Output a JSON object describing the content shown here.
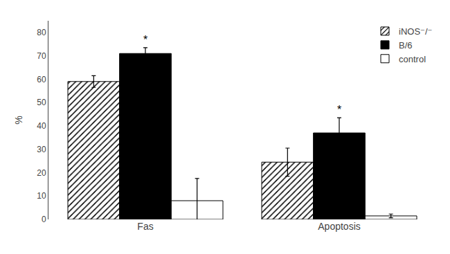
{
  "chart_data": {
    "type": "bar",
    "categories": [
      "Fas",
      "Apoptosis"
    ],
    "series": [
      {
        "name": "iNOS⁻/⁻",
        "color": "white",
        "values": [
          59.0,
          24.5
        ],
        "errors": [
          2.5,
          6.0
        ]
      },
      {
        "name": "B/6",
        "color": "black",
        "values": [
          71.0,
          37.0
        ],
        "errors": [
          2.5,
          6.5
        ]
      },
      {
        "name": "control",
        "color": "white",
        "values": [
          8.0,
          1.5
        ],
        "errors": [
          9.5,
          0.8
        ]
      }
    ],
    "annotations": [
      {
        "text": "*",
        "category": "Fas",
        "series": "B/6"
      },
      {
        "text": "*",
        "category": "Apoptosis",
        "series": "B/6"
      }
    ],
    "ylabel": "%",
    "ylim": [
      0,
      85
    ],
    "yticks": [
      0,
      10,
      20,
      30,
      40,
      50,
      60,
      70,
      80
    ],
    "grid": false,
    "legend": "upper right"
  }
}
